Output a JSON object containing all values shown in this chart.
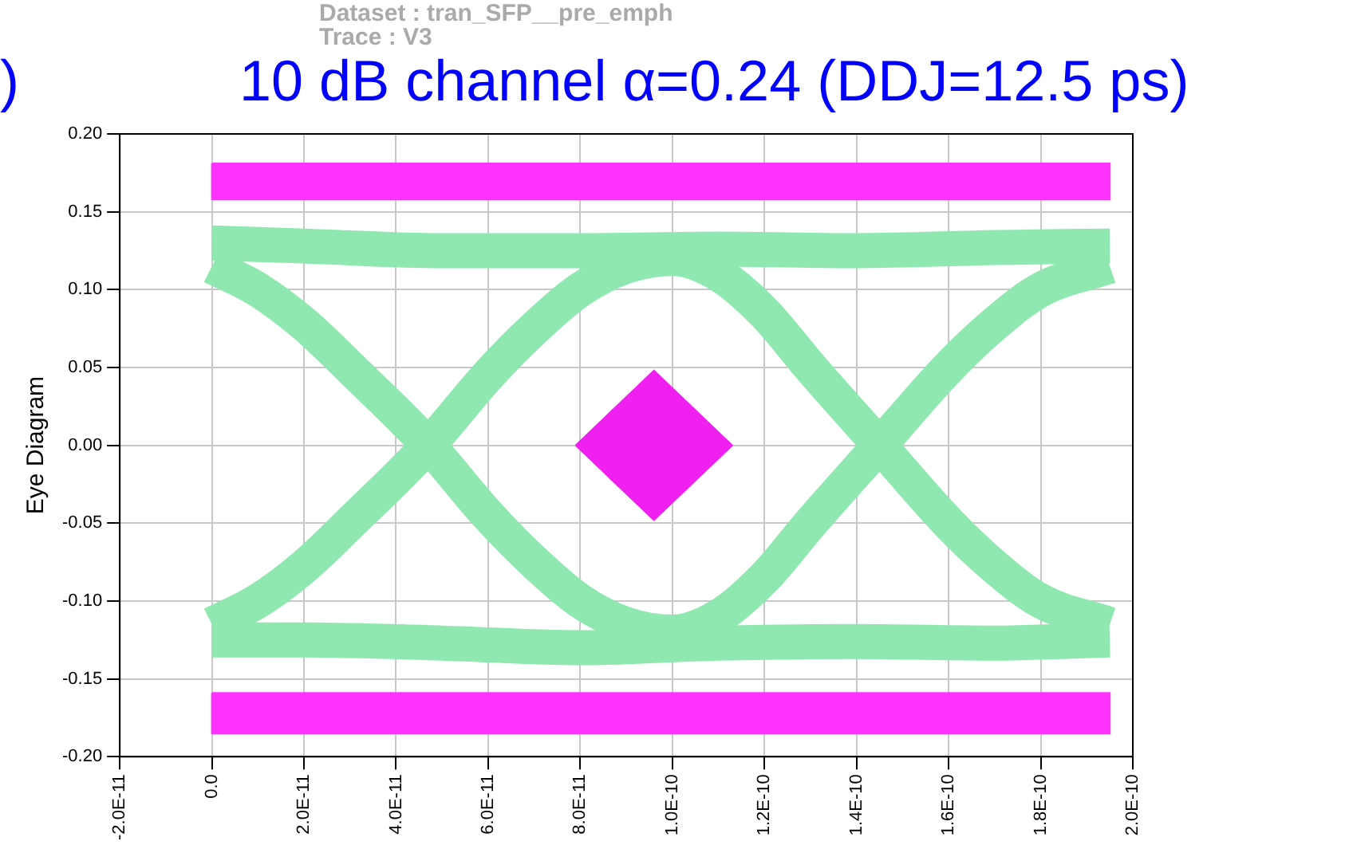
{
  "chart_data": {
    "type": "line",
    "title": "10 dB channel α=0.24 (DDJ=12.5 ps)",
    "ylabel": "Eye Diagram",
    "annotations": [
      "Dataset : tran_SFP__pre_emph",
      "Trace : V3",
      ")"
    ],
    "xlim": [
      -2e-11,
      2e-10
    ],
    "xticks": [
      {
        "value": -2e-11,
        "label": "-2.0E-11"
      },
      {
        "value": 0,
        "label": "0.0"
      },
      {
        "value": 2e-11,
        "label": "2.0E-11"
      },
      {
        "value": 4e-11,
        "label": "4.0E-11"
      },
      {
        "value": 6e-11,
        "label": "6.0E-11"
      },
      {
        "value": 8e-11,
        "label": "8.0E-11"
      },
      {
        "value": 1e-10,
        "label": "1.0E-10"
      },
      {
        "value": 1.2e-10,
        "label": "1.2E-10"
      },
      {
        "value": 1.4e-10,
        "label": "1.4E-10"
      },
      {
        "value": 1.6e-10,
        "label": "1.6E-10"
      },
      {
        "value": 1.8e-10,
        "label": "1.8E-10"
      },
      {
        "value": 2e-10,
        "label": "2.0E-10"
      }
    ],
    "ylim": [
      -0.2,
      0.2
    ],
    "yticks": [
      {
        "value": -0.2,
        "label": "-0.20"
      },
      {
        "value": -0.15,
        "label": "-0.15"
      },
      {
        "value": -0.1,
        "label": "-0.10"
      },
      {
        "value": -0.05,
        "label": "-0.05"
      },
      {
        "value": 0,
        "label": "0.00"
      },
      {
        "value": 0.05,
        "label": "0.05"
      },
      {
        "value": 0.1,
        "label": "0.10"
      },
      {
        "value": 0.15,
        "label": "0.15"
      },
      {
        "value": 0.2,
        "label": "0.20"
      }
    ],
    "grid": true,
    "legend": false,
    "marker": "none",
    "line_style": "solid",
    "series": [
      {
        "type": "area",
        "color": "#ff33ff",
        "x": [
          0,
          1.95e-10,
          1.95e-10,
          0,
          0
        ],
        "values": [
          0.181,
          0.181,
          0.158,
          0.158,
          0.181
        ]
      },
      {
        "type": "area",
        "color": "#ff33ff",
        "x": [
          0,
          1.95e-10,
          1.95e-10,
          0,
          0
        ],
        "values": [
          -0.159,
          -0.159,
          -0.185,
          -0.185,
          -0.159
        ]
      },
      {
        "type": "area",
        "color": "#f020f0",
        "x": [
          7.9e-11,
          9.6e-11,
          1.13e-10,
          9.6e-11,
          7.9e-11
        ],
        "values": [
          0,
          0.048,
          0,
          -0.048,
          0
        ]
      },
      {
        "color": "#8ee8b0",
        "x": [
          0,
          2e-11,
          5e-11,
          8e-11,
          1.1e-10,
          1.4e-10,
          1.7e-10,
          1.95e-10
        ],
        "values": [
          0.13,
          0.128,
          0.125,
          0.125,
          0.126,
          0.125,
          0.127,
          0.128
        ]
      },
      {
        "color": "#8ee8b0",
        "x": [
          0,
          2e-11,
          5e-11,
          8e-11,
          1.1e-10,
          1.4e-10,
          1.7e-10,
          1.95e-10
        ],
        "values": [
          -0.125,
          -0.125,
          -0.127,
          -0.13,
          -0.127,
          -0.126,
          -0.127,
          -0.125
        ]
      },
      {
        "color": "#8ee8b0",
        "x": [
          0,
          1e-11,
          2e-11,
          3e-11,
          4.7e-11,
          6e-11,
          7e-11,
          8e-11,
          9e-11,
          1e-10,
          1.1e-10,
          1.2e-10,
          1.3e-10,
          1.45e-10,
          1.6e-10,
          1.7e-10,
          1.8e-10,
          1.95e-10
        ],
        "values": [
          0.115,
          0.1,
          0.078,
          0.05,
          0,
          -0.045,
          -0.075,
          -0.1,
          -0.115,
          -0.12,
          -0.11,
          -0.085,
          -0.05,
          0,
          0.05,
          0.078,
          0.1,
          0.115
        ]
      },
      {
        "color": "#8ee8b0",
        "x": [
          0,
          1e-11,
          2e-11,
          3e-11,
          4.7e-11,
          6e-11,
          7e-11,
          8e-11,
          9e-11,
          1e-10,
          1.1e-10,
          1.2e-10,
          1.3e-10,
          1.45e-10,
          1.6e-10,
          1.7e-10,
          1.8e-10,
          1.95e-10
        ],
        "values": [
          -0.115,
          -0.1,
          -0.078,
          -0.05,
          0,
          0.045,
          0.075,
          0.1,
          0.115,
          0.12,
          0.11,
          0.085,
          0.05,
          0,
          -0.05,
          -0.078,
          -0.1,
          -0.115
        ]
      }
    ]
  }
}
